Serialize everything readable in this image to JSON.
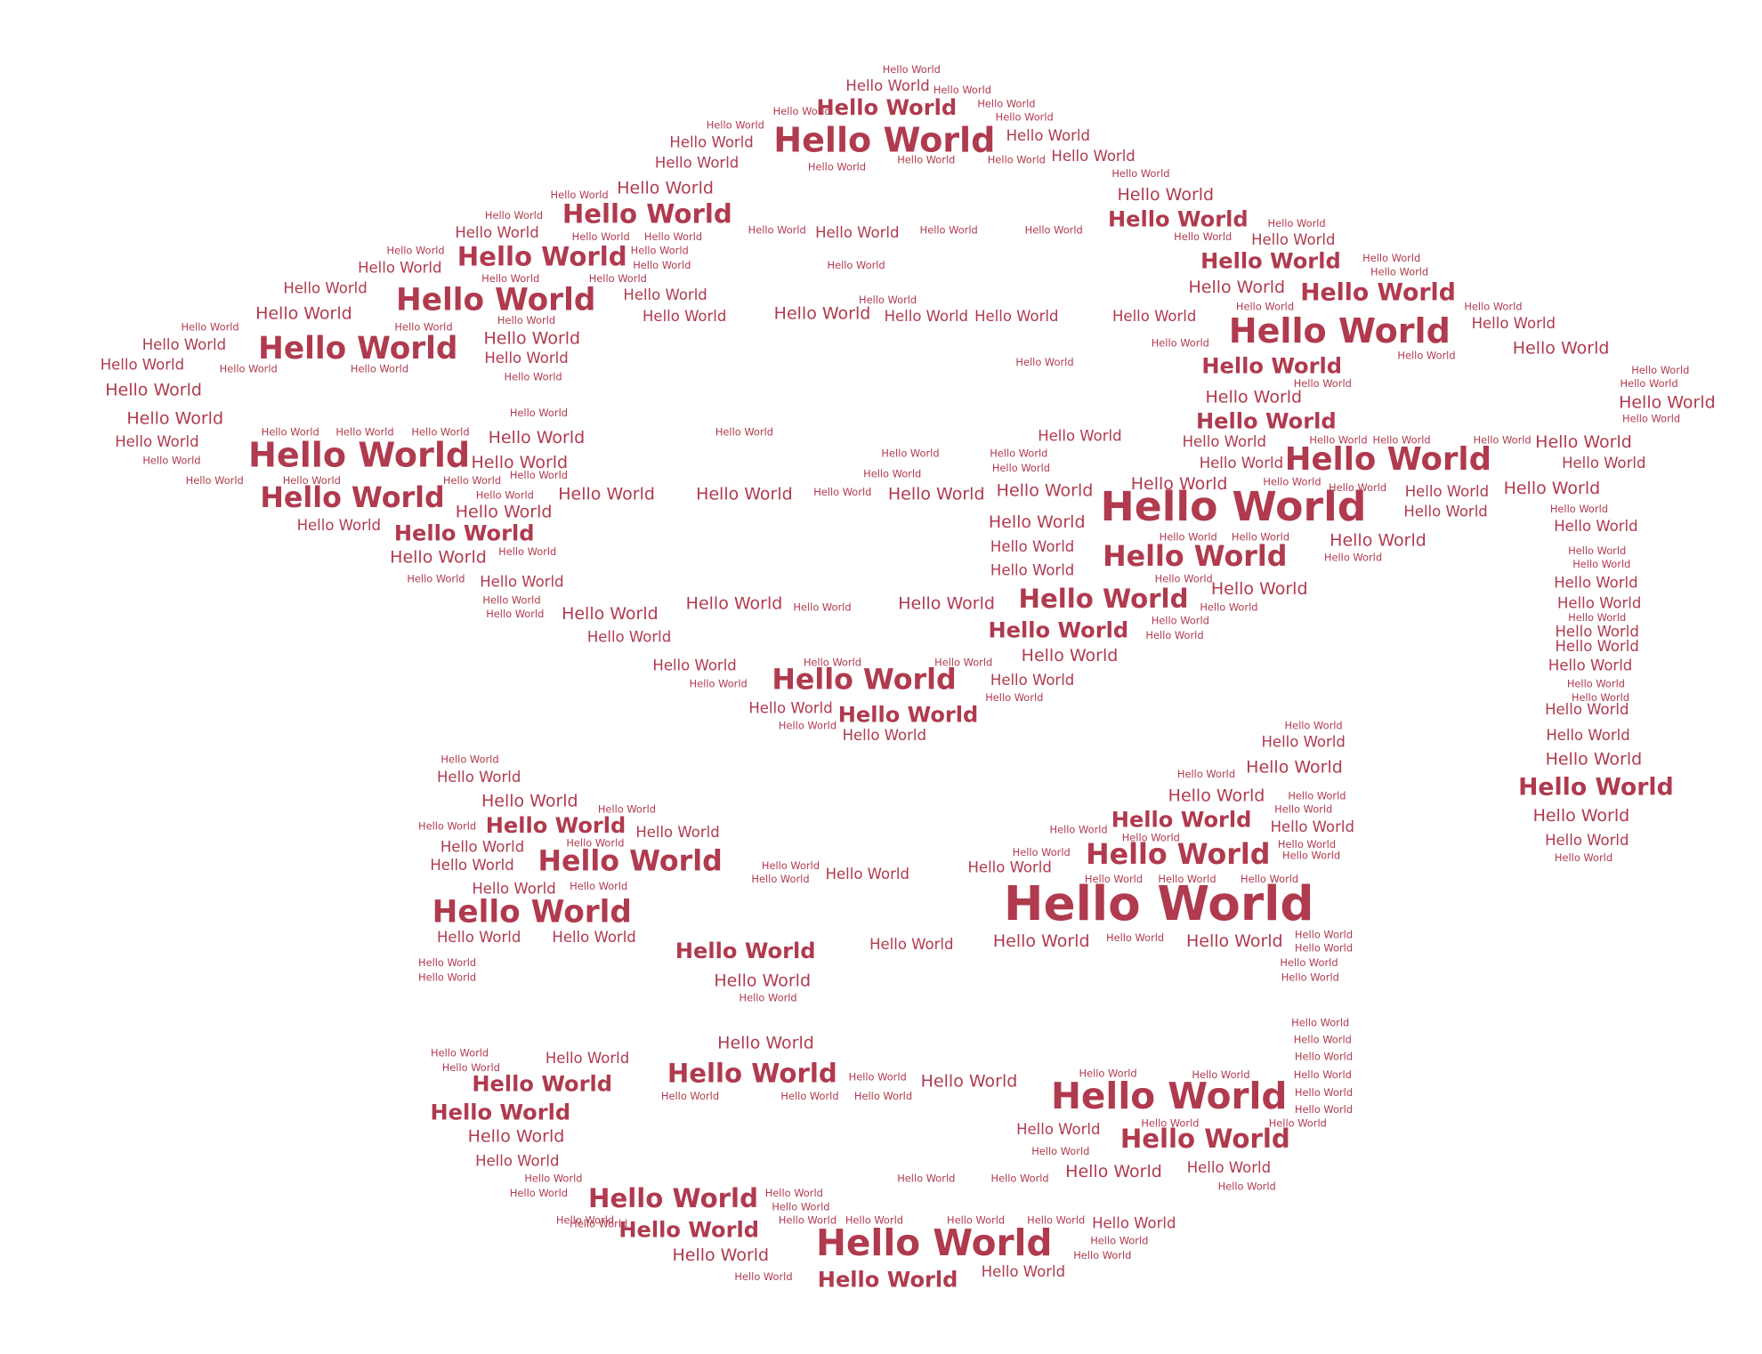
{
  "word": "Hello World",
  "color": "#b03a4e",
  "colors": {
    "word_color": "#b03a4e",
    "background": "#ffffff"
  }
}
